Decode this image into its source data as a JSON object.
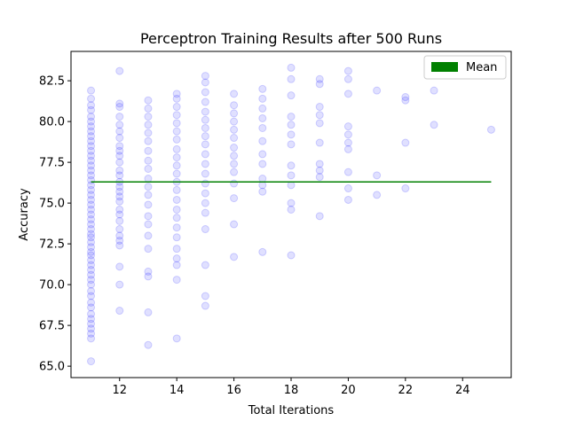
{
  "chart_data": {
    "type": "scatter",
    "title": "Perceptron Training Results after 500 Runs",
    "xlabel": "Total Iterations",
    "ylabel": "Accuracy",
    "xlim": [
      10.3,
      25.7
    ],
    "ylim": [
      64.3,
      84.3
    ],
    "xticks": [
      12,
      14,
      16,
      18,
      20,
      22,
      24
    ],
    "yticks": [
      65.0,
      67.5,
      70.0,
      72.5,
      75.0,
      77.5,
      80.0,
      82.5
    ],
    "xtick_labels": [
      "12",
      "14",
      "16",
      "18",
      "20",
      "22",
      "24"
    ],
    "ytick_labels": [
      "65.0",
      "67.5",
      "70.0",
      "72.5",
      "75.0",
      "77.5",
      "80.0",
      "82.5"
    ],
    "grid": false,
    "legend": {
      "placement": "upper right",
      "entries": [
        {
          "label": "Mean",
          "color": "#008000"
        }
      ]
    },
    "mean_line": {
      "label": "Mean",
      "y": 76.3,
      "x": [
        11,
        25
      ],
      "color": "#008000"
    },
    "series": [
      {
        "marker_color": "#0000ff",
        "alpha": 0.12,
        "points": [
          [
            11,
            65.3
          ],
          [
            11,
            66.7
          ],
          [
            11,
            67.0
          ],
          [
            11,
            67.3
          ],
          [
            11,
            67.6
          ],
          [
            11,
            67.9
          ],
          [
            11,
            68.2
          ],
          [
            11,
            68.6
          ],
          [
            11,
            68.9
          ],
          [
            11,
            69.3
          ],
          [
            11,
            69.6
          ],
          [
            11,
            70.0
          ],
          [
            11,
            70.3
          ],
          [
            11,
            70.6
          ],
          [
            11,
            70.9
          ],
          [
            11,
            71.2
          ],
          [
            11,
            71.5
          ],
          [
            11,
            71.8
          ],
          [
            11,
            72.0
          ],
          [
            11,
            72.3
          ],
          [
            11,
            72.6
          ],
          [
            11,
            72.9
          ],
          [
            11,
            73.1
          ],
          [
            11,
            73.4
          ],
          [
            11,
            73.7
          ],
          [
            11,
            74.0
          ],
          [
            11,
            74.3
          ],
          [
            11,
            74.6
          ],
          [
            11,
            74.9
          ],
          [
            11,
            75.2
          ],
          [
            11,
            75.5
          ],
          [
            11,
            75.8
          ],
          [
            11,
            76.1
          ],
          [
            11,
            76.4
          ],
          [
            11,
            76.7
          ],
          [
            11,
            77.0
          ],
          [
            11,
            77.3
          ],
          [
            11,
            77.6
          ],
          [
            11,
            77.9
          ],
          [
            11,
            78.2
          ],
          [
            11,
            78.5
          ],
          [
            11,
            78.8
          ],
          [
            11,
            79.1
          ],
          [
            11,
            79.4
          ],
          [
            11,
            79.7
          ],
          [
            11,
            80.0
          ],
          [
            11,
            80.3
          ],
          [
            11,
            80.7
          ],
          [
            11,
            81.0
          ],
          [
            11,
            81.4
          ],
          [
            11,
            81.9
          ],
          [
            12,
            68.4
          ],
          [
            12,
            70.0
          ],
          [
            12,
            71.1
          ],
          [
            12,
            72.4
          ],
          [
            12,
            72.7
          ],
          [
            12,
            73.0
          ],
          [
            12,
            73.4
          ],
          [
            12,
            73.9
          ],
          [
            12,
            74.3
          ],
          [
            12,
            74.6
          ],
          [
            12,
            75.1
          ],
          [
            12,
            75.4
          ],
          [
            12,
            75.7
          ],
          [
            12,
            76.0
          ],
          [
            12,
            76.3
          ],
          [
            12,
            76.7
          ],
          [
            12,
            77.0
          ],
          [
            12,
            77.5
          ],
          [
            12,
            77.9
          ],
          [
            12,
            78.2
          ],
          [
            12,
            78.5
          ],
          [
            12,
            79.0
          ],
          [
            12,
            79.4
          ],
          [
            12,
            79.8
          ],
          [
            12,
            80.3
          ],
          [
            12,
            80.9
          ],
          [
            12,
            81.1
          ],
          [
            12,
            83.1
          ],
          [
            13,
            66.3
          ],
          [
            13,
            68.3
          ],
          [
            13,
            70.5
          ],
          [
            13,
            70.8
          ],
          [
            13,
            72.2
          ],
          [
            13,
            73.0
          ],
          [
            13,
            73.7
          ],
          [
            13,
            74.2
          ],
          [
            13,
            74.9
          ],
          [
            13,
            75.5
          ],
          [
            13,
            76.0
          ],
          [
            13,
            76.5
          ],
          [
            13,
            77.1
          ],
          [
            13,
            77.6
          ],
          [
            13,
            78.2
          ],
          [
            13,
            78.8
          ],
          [
            13,
            79.3
          ],
          [
            13,
            79.8
          ],
          [
            13,
            80.3
          ],
          [
            13,
            80.8
          ],
          [
            13,
            81.3
          ],
          [
            14,
            66.7
          ],
          [
            14,
            70.3
          ],
          [
            14,
            71.2
          ],
          [
            14,
            71.6
          ],
          [
            14,
            72.2
          ],
          [
            14,
            72.9
          ],
          [
            14,
            73.5
          ],
          [
            14,
            74.1
          ],
          [
            14,
            74.6
          ],
          [
            14,
            75.2
          ],
          [
            14,
            75.8
          ],
          [
            14,
            76.3
          ],
          [
            14,
            76.8
          ],
          [
            14,
            77.3
          ],
          [
            14,
            77.8
          ],
          [
            14,
            78.3
          ],
          [
            14,
            78.9
          ],
          [
            14,
            79.4
          ],
          [
            14,
            79.9
          ],
          [
            14,
            80.4
          ],
          [
            14,
            80.9
          ],
          [
            14,
            81.4
          ],
          [
            14,
            81.7
          ],
          [
            15,
            68.7
          ],
          [
            15,
            69.3
          ],
          [
            15,
            71.2
          ],
          [
            15,
            73.4
          ],
          [
            15,
            74.4
          ],
          [
            15,
            75.0
          ],
          [
            15,
            75.6
          ],
          [
            15,
            76.2
          ],
          [
            15,
            76.8
          ],
          [
            15,
            77.4
          ],
          [
            15,
            78.0
          ],
          [
            15,
            78.6
          ],
          [
            15,
            79.1
          ],
          [
            15,
            79.6
          ],
          [
            15,
            80.1
          ],
          [
            15,
            80.6
          ],
          [
            15,
            81.2
          ],
          [
            15,
            81.8
          ],
          [
            15,
            82.4
          ],
          [
            15,
            82.8
          ],
          [
            16,
            71.7
          ],
          [
            16,
            73.7
          ],
          [
            16,
            75.3
          ],
          [
            16,
            76.2
          ],
          [
            16,
            76.9
          ],
          [
            16,
            77.4
          ],
          [
            16,
            77.9
          ],
          [
            16,
            78.4
          ],
          [
            16,
            79.0
          ],
          [
            16,
            79.5
          ],
          [
            16,
            80.0
          ],
          [
            16,
            80.5
          ],
          [
            16,
            81.0
          ],
          [
            16,
            81.7
          ],
          [
            17,
            72.0
          ],
          [
            17,
            75.7
          ],
          [
            17,
            76.1
          ],
          [
            17,
            76.5
          ],
          [
            17,
            77.4
          ],
          [
            17,
            78.0
          ],
          [
            17,
            78.8
          ],
          [
            17,
            79.6
          ],
          [
            17,
            80.2
          ],
          [
            17,
            80.8
          ],
          [
            17,
            81.4
          ],
          [
            17,
            82.0
          ],
          [
            18,
            71.8
          ],
          [
            18,
            74.6
          ],
          [
            18,
            75.0
          ],
          [
            18,
            76.1
          ],
          [
            18,
            76.7
          ],
          [
            18,
            77.3
          ],
          [
            18,
            78.6
          ],
          [
            18,
            79.2
          ],
          [
            18,
            79.8
          ],
          [
            18,
            80.3
          ],
          [
            18,
            81.6
          ],
          [
            18,
            82.6
          ],
          [
            18,
            83.3
          ],
          [
            19,
            74.2
          ],
          [
            19,
            76.6
          ],
          [
            19,
            77.0
          ],
          [
            19,
            77.4
          ],
          [
            19,
            78.7
          ],
          [
            19,
            79.9
          ],
          [
            19,
            80.4
          ],
          [
            19,
            80.9
          ],
          [
            19,
            82.3
          ],
          [
            19,
            82.6
          ],
          [
            20,
            75.2
          ],
          [
            20,
            75.9
          ],
          [
            20,
            76.9
          ],
          [
            20,
            78.3
          ],
          [
            20,
            78.7
          ],
          [
            20,
            79.2
          ],
          [
            20,
            79.7
          ],
          [
            20,
            81.7
          ],
          [
            20,
            82.6
          ],
          [
            20,
            83.1
          ],
          [
            21,
            75.5
          ],
          [
            21,
            76.7
          ],
          [
            21,
            81.9
          ],
          [
            22,
            75.9
          ],
          [
            22,
            78.7
          ],
          [
            22,
            81.3
          ],
          [
            22,
            81.5
          ],
          [
            23,
            79.8
          ],
          [
            23,
            81.9
          ],
          [
            25,
            79.5
          ]
        ]
      }
    ]
  }
}
